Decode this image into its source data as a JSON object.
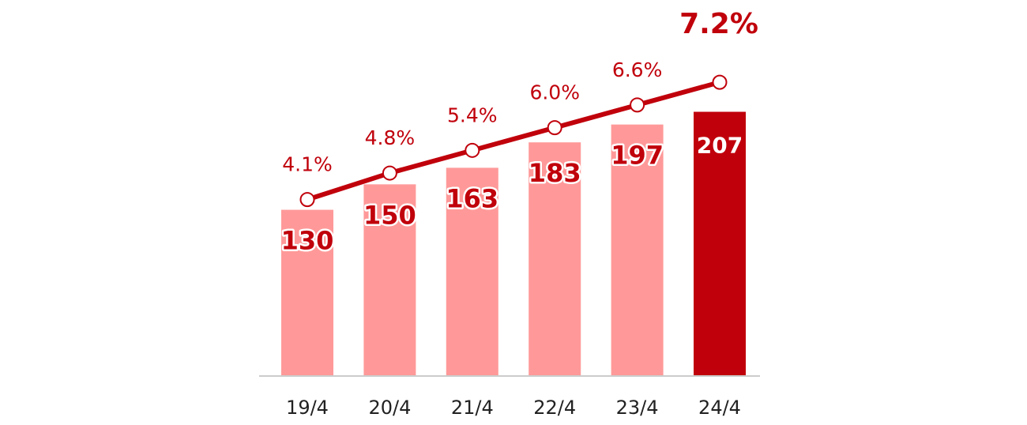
{
  "chart_data": {
    "type": "bar",
    "categories": [
      "19/4",
      "20/4",
      "21/4",
      "22/4",
      "23/4",
      "24/4"
    ],
    "series": [
      {
        "values": [
          130,
          150,
          163,
          183,
          197,
          207
        ]
      },
      {
        "values": [
          4.1,
          4.8,
          5.4,
          6.0,
          6.6,
          7.2
        ]
      }
    ],
    "bar_labels": [
      "130",
      "150",
      "163",
      "183",
      "197",
      "207"
    ],
    "line_labels": [
      "4.1%",
      "4.8%",
      "5.4%",
      "6.0%",
      "6.6%",
      "7.2%"
    ],
    "title": "",
    "xlabel": "",
    "ylabel": "",
    "ylim": [
      0,
      240
    ],
    "line_ylim": [
      0,
      8.6
    ],
    "grid": false,
    "legend": "none",
    "colors": {
      "bar": "#ff9999",
      "bar_highlight": "#c0000b",
      "line": "#c0000b",
      "marker_fill": "#ffffff",
      "axis": "#cccccc"
    }
  }
}
